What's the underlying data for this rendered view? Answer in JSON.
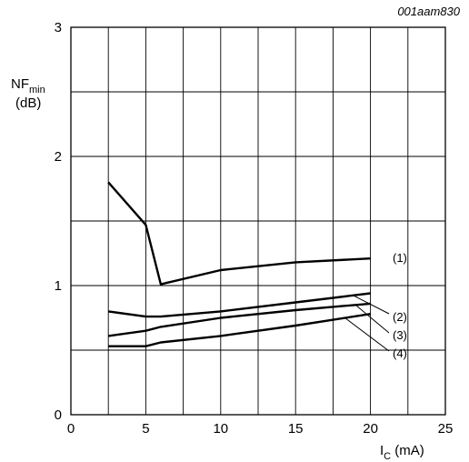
{
  "chart_data": {
    "type": "line",
    "figure_code": "001aam830",
    "ylabel_main": "NF",
    "ylabel_sub": "min",
    "ylabel_unit": "(dB)",
    "xlabel_main": "I",
    "xlabel_sub": "C",
    "xlabel_unit": " (mA)",
    "xlim": [
      0,
      25
    ],
    "ylim": [
      0,
      3
    ],
    "x_ticks": [
      "0",
      "5",
      "10",
      "15",
      "20",
      "25"
    ],
    "y_ticks": [
      "0",
      "1",
      "2",
      "3"
    ],
    "grid": true,
    "series": [
      {
        "name": "(1)",
        "points": [
          [
            2.5,
            1.8
          ],
          [
            5,
            1.47
          ],
          [
            6,
            1.01
          ],
          [
            10,
            1.12
          ],
          [
            15,
            1.18
          ],
          [
            20,
            1.21
          ]
        ]
      },
      {
        "name": "(2)",
        "points": [
          [
            2.5,
            0.8
          ],
          [
            5,
            0.76
          ],
          [
            6,
            0.76
          ],
          [
            10,
            0.8
          ],
          [
            15,
            0.87
          ],
          [
            20,
            0.94
          ]
        ]
      },
      {
        "name": "(3)",
        "points": [
          [
            2.5,
            0.61
          ],
          [
            5,
            0.65
          ],
          [
            6,
            0.68
          ],
          [
            10,
            0.75
          ],
          [
            15,
            0.81
          ],
          [
            20,
            0.86
          ]
        ]
      },
      {
        "name": "(4)",
        "points": [
          [
            2.5,
            0.53
          ],
          [
            5,
            0.53
          ],
          [
            6,
            0.56
          ],
          [
            10,
            0.61
          ],
          [
            15,
            0.69
          ],
          [
            20,
            0.78
          ]
        ]
      }
    ]
  }
}
